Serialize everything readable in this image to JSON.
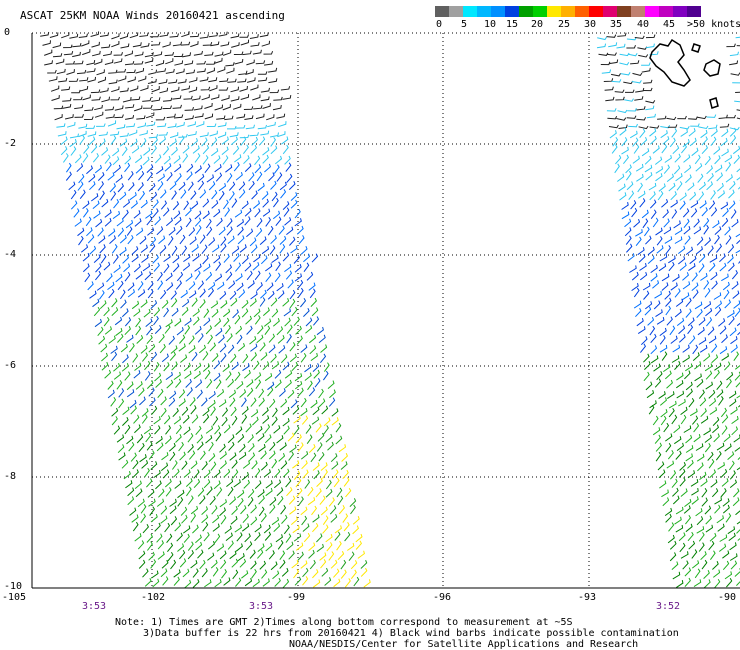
{
  "title": "ASCAT 25KM NOAA Winds 20160421 ascending",
  "legend": {
    "colors": [
      "#606060",
      "#a0a0a0",
      "#00e8ff",
      "#00b8ff",
      "#0090ff",
      "#0040e0",
      "#00a000",
      "#00d000",
      "#ffe800",
      "#ffb000",
      "#ff6000",
      "#ff0000",
      "#e00070",
      "#804020",
      "#c08070",
      "#ff00ff",
      "#c000c0",
      "#8000c0",
      "#500090"
    ],
    "labels": [
      "0",
      "5",
      "10",
      "15",
      "20",
      "25",
      "30",
      "35",
      "40",
      "45",
      ">50 knots"
    ]
  },
  "axes": {
    "y_labels": [
      "0",
      "-2",
      "-4",
      "-6",
      "-8",
      "-10"
    ],
    "x_labels": [
      "-105",
      "-102",
      "-99",
      "-96",
      "-93",
      "-90"
    ]
  },
  "times": [
    "3:53",
    "3:53",
    "3:52"
  ],
  "notes": [
    "Note: 1) Times are GMT 2)Times along bottom correspond to measurement at ~5S",
    "3)Data buffer is 22 hrs from 20160421 4) Black wind barbs indicate possible contamination",
    "NOAA/NESDIS/Center for Satellite Applications and Research"
  ]
}
